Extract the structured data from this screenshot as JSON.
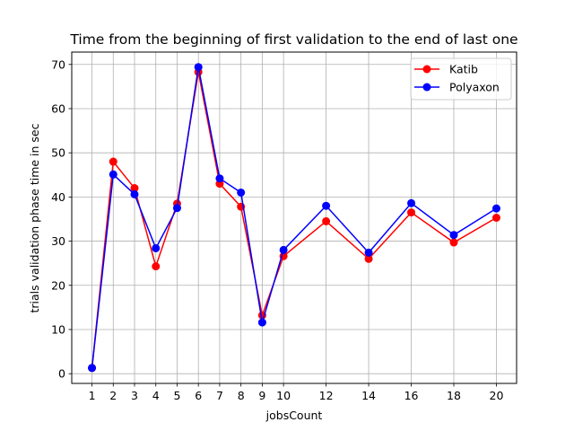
{
  "chart_data": {
    "type": "line",
    "title": "Time from the beginning of first validation to the end of last one",
    "xlabel": "jobsCount",
    "ylabel": "trials validation phase time in sec",
    "x": [
      1,
      2,
      3,
      4,
      5,
      6,
      7,
      8,
      9,
      10,
      12,
      14,
      16,
      18,
      20
    ],
    "xticks": [
      "1",
      "2",
      "3",
      "4",
      "5",
      "6",
      "7",
      "8",
      "9",
      "10",
      "12",
      "14",
      "16",
      "18",
      "20"
    ],
    "yticks": [
      "0",
      "10",
      "20",
      "30",
      "40",
      "50",
      "60",
      "70"
    ],
    "xlim": [
      0.05,
      20.95
    ],
    "ylim": [
      -2.2,
      72.8
    ],
    "grid": true,
    "legend_position": "top-right",
    "series": [
      {
        "name": "Katib",
        "color": "#ff0000",
        "values": [
          1.3,
          48.0,
          42.0,
          24.3,
          38.5,
          68.3,
          43.0,
          37.8,
          13.2,
          26.6,
          34.5,
          26.0,
          36.5,
          29.7,
          35.3
        ]
      },
      {
        "name": "Polyaxon",
        "color": "#0000ff",
        "values": [
          1.3,
          45.1,
          40.6,
          28.4,
          37.5,
          69.4,
          44.2,
          41.0,
          11.6,
          28.0,
          38.0,
          27.4,
          38.6,
          31.4,
          37.4
        ]
      }
    ]
  }
}
